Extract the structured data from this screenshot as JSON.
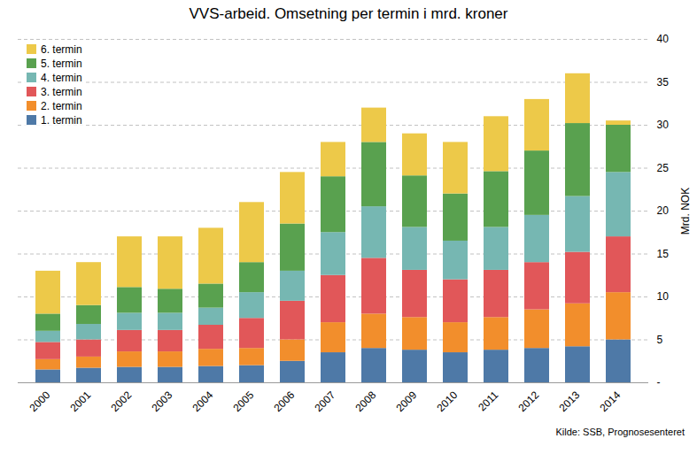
{
  "chart_data": {
    "type": "bar",
    "stacked": true,
    "title": "VVS-arbeid. Omsetning per termin i mrd. kroner",
    "categories": [
      "2000",
      "2001",
      "2002",
      "2003",
      "2004",
      "2005",
      "2006",
      "2007",
      "2008",
      "2009",
      "2010",
      "2011",
      "2012",
      "2013",
      "2014"
    ],
    "series": [
      {
        "name": "1. termin",
        "values": [
          1.5,
          1.7,
          1.8,
          1.8,
          1.9,
          2.0,
          2.5,
          3.5,
          4.0,
          3.8,
          3.5,
          3.8,
          4.0,
          4.2,
          5.0
        ]
      },
      {
        "name": "2. termin",
        "values": [
          1.2,
          1.3,
          1.8,
          1.8,
          2.0,
          2.0,
          2.5,
          3.5,
          4.0,
          3.8,
          3.5,
          3.8,
          4.5,
          5.0,
          5.5
        ]
      },
      {
        "name": "3. termin",
        "values": [
          2.0,
          2.0,
          2.5,
          2.5,
          2.8,
          3.5,
          4.5,
          5.5,
          6.5,
          5.5,
          5.0,
          5.5,
          5.5,
          6.0,
          6.5
        ]
      },
      {
        "name": "4. termin",
        "values": [
          1.3,
          1.8,
          2.0,
          2.0,
          2.0,
          3.0,
          3.5,
          5.0,
          6.0,
          5.0,
          4.5,
          5.0,
          5.5,
          6.5,
          7.5
        ]
      },
      {
        "name": "5. termin",
        "values": [
          2.0,
          2.2,
          3.0,
          2.8,
          2.8,
          3.5,
          5.5,
          6.5,
          7.5,
          6.0,
          5.5,
          6.5,
          7.5,
          8.5,
          5.5
        ]
      },
      {
        "name": "6. termin",
        "values": [
          5.0,
          5.0,
          5.9,
          6.1,
          6.5,
          7.0,
          6.0,
          4.0,
          4.0,
          4.9,
          6.0,
          6.4,
          6.0,
          5.8,
          0.5
        ]
      }
    ],
    "ylabel": "Mrd. NOK",
    "ylim": [
      0,
      40
    ],
    "yticks": [
      {
        "value": 0,
        "label": "-"
      },
      5,
      10,
      15,
      20,
      25,
      30,
      35,
      40
    ],
    "grid": true,
    "legend": "upper left",
    "annotations": [
      "Kilde: SSB, Prognosesenteret"
    ]
  }
}
